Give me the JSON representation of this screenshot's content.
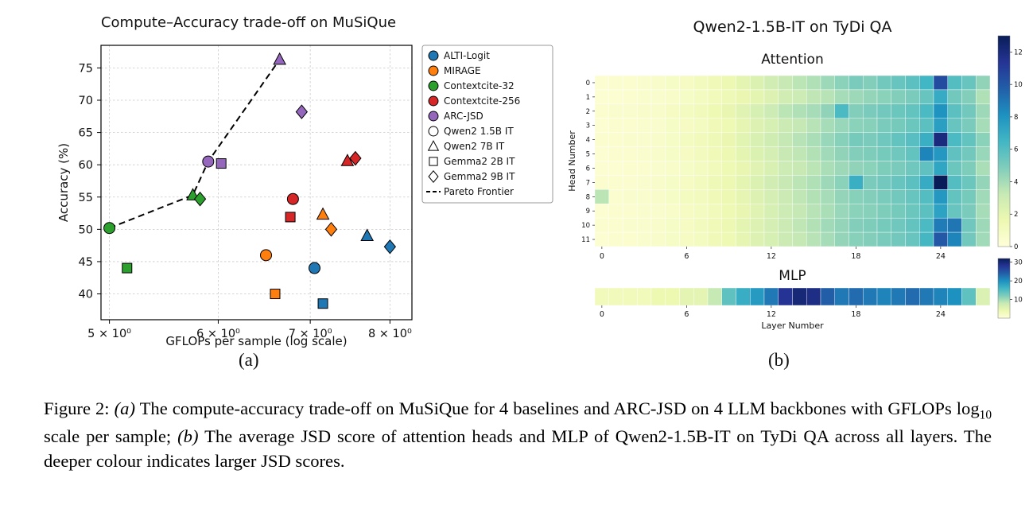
{
  "page": {
    "background": "#ffffff"
  },
  "panel_a": {
    "sublabel": "(a)"
  },
  "panel_b": {
    "sublabel": "(b)"
  },
  "caption": {
    "segments": [
      {
        "t": "Figure 2: ",
        "s": "normal"
      },
      {
        "t": "(a)",
        "s": "italic"
      },
      {
        "t": " The compute-accuracy trade-off on MuSiQue for 4 baselines and ARC-JSD on 4 LLM backbones with GFLOPs log",
        "s": "normal"
      },
      {
        "t": "10",
        "s": "sub"
      },
      {
        "t": " scale per sample; ",
        "s": "normal"
      },
      {
        "t": "(b)",
        "s": "italic"
      },
      {
        "t": " The average JSD score of attention heads and MLP of Qwen2-1.5B-IT on TyDi QA across all layers. The deeper colour indicates larger JSD scores.",
        "s": "normal"
      }
    ]
  },
  "chart_data": [
    {
      "type": "scatter",
      "title": "Compute–Accuracy trade-off on MuSiQue",
      "xlabel": "GFLOPs per sample (log scale)",
      "ylabel": "Accuracy (%)",
      "xscale": "log10",
      "xlim": [
        4.93,
        8.3
      ],
      "ylim": [
        36,
        78.5
      ],
      "xticks": [
        5,
        6,
        7,
        8
      ],
      "xtick_labels": [
        "5 × 10⁰",
        "6 × 10⁰",
        "7 × 10⁰",
        "8 × 10⁰"
      ],
      "yticks": [
        40,
        45,
        50,
        55,
        60,
        65,
        70,
        75
      ],
      "grid": true,
      "legend_position": "outside-right",
      "series": [
        {
          "name": "ALTI-Logit",
          "color": "#1f77b4",
          "points": [
            {
              "marker": "circle",
              "x": 7.05,
              "y": 44.0
            },
            {
              "marker": "triangle",
              "x": 7.7,
              "y": 49.0
            },
            {
              "marker": "square",
              "x": 7.15,
              "y": 38.5
            },
            {
              "marker": "diamond",
              "x": 8.0,
              "y": 47.3
            }
          ]
        },
        {
          "name": "MIRAGE",
          "color": "#ff7f0e",
          "points": [
            {
              "marker": "circle",
              "x": 6.5,
              "y": 46.0
            },
            {
              "marker": "triangle",
              "x": 7.15,
              "y": 52.3
            },
            {
              "marker": "square",
              "x": 6.6,
              "y": 40.0
            },
            {
              "marker": "diamond",
              "x": 7.25,
              "y": 50.0
            }
          ]
        },
        {
          "name": "Contextcite-32",
          "color": "#2ca02c",
          "points": [
            {
              "marker": "circle",
              "x": 5.0,
              "y": 50.2
            },
            {
              "marker": "triangle",
              "x": 5.75,
              "y": 55.3
            },
            {
              "marker": "square",
              "x": 5.15,
              "y": 44.0
            },
            {
              "marker": "diamond",
              "x": 5.82,
              "y": 54.7
            }
          ]
        },
        {
          "name": "Contextcite-256",
          "color": "#d62728",
          "points": [
            {
              "marker": "circle",
              "x": 6.8,
              "y": 54.7
            },
            {
              "marker": "triangle",
              "x": 7.45,
              "y": 60.6
            },
            {
              "marker": "square",
              "x": 6.77,
              "y": 51.9
            },
            {
              "marker": "diamond",
              "x": 7.55,
              "y": 61.0
            }
          ]
        },
        {
          "name": "ARC-JSD",
          "color": "#9467bd",
          "points": [
            {
              "marker": "circle",
              "x": 5.9,
              "y": 60.5
            },
            {
              "marker": "triangle",
              "x": 6.65,
              "y": 76.3
            },
            {
              "marker": "square",
              "x": 6.03,
              "y": 60.2
            },
            {
              "marker": "diamond",
              "x": 6.9,
              "y": 68.2
            }
          ]
        }
      ],
      "marker_legend": [
        {
          "marker": "circle",
          "label": "Qwen2 1.5B IT"
        },
        {
          "marker": "triangle",
          "label": "Qwen2 7B IT"
        },
        {
          "marker": "square",
          "label": "Gemma2 2B IT"
        },
        {
          "marker": "diamond",
          "label": "Gemma2 9B IT"
        }
      ],
      "pareto": {
        "label": "Pareto Frontier",
        "points": [
          [
            5.0,
            50.2
          ],
          [
            5.75,
            55.3
          ],
          [
            5.9,
            60.5
          ],
          [
            6.65,
            76.3
          ]
        ]
      }
    },
    {
      "type": "heatmap",
      "suptitle": "Qwen2-1.5B-IT on TyDi QA",
      "title": "Attention",
      "ylabel": "Head Number",
      "rows": [
        "0",
        "1",
        "2",
        "3",
        "4",
        "5",
        "6",
        "7",
        "8",
        "9",
        "10",
        "11"
      ],
      "xticks": [
        0,
        6,
        12,
        18,
        24
      ],
      "colorbar_ticks": [
        0,
        2,
        4,
        6,
        8,
        10,
        12
      ],
      "vmin": 0,
      "vmax": 13,
      "colormap": "YlGnBu",
      "values": [
        [
          0.3,
          0.4,
          0.4,
          0.5,
          0.6,
          0.8,
          0.9,
          1.1,
          1.3,
          1.6,
          2.0,
          2.4,
          2.8,
          3.2,
          3.5,
          3.8,
          4.2,
          4.6,
          5.0,
          4.8,
          5.2,
          5.5,
          5.8,
          6.5,
          10.5,
          6.0,
          5.5,
          4.5
        ],
        [
          0.3,
          0.3,
          0.4,
          0.5,
          0.5,
          0.7,
          0.8,
          1.0,
          1.2,
          1.4,
          1.7,
          2.0,
          2.3,
          2.8,
          3.0,
          3.4,
          3.6,
          4.0,
          4.2,
          4.4,
          4.6,
          4.8,
          5.0,
          5.5,
          7.0,
          5.2,
          4.8,
          3.8
        ],
        [
          0.4,
          0.5,
          0.5,
          0.6,
          0.6,
          0.9,
          1.0,
          1.2,
          1.5,
          1.8,
          2.2,
          2.6,
          3.0,
          3.5,
          3.8,
          4.0,
          4.5,
          6.2,
          4.8,
          5.0,
          5.2,
          5.4,
          5.6,
          6.2,
          8.0,
          5.8,
          5.2,
          4.2
        ],
        [
          0.3,
          0.4,
          0.4,
          0.5,
          0.5,
          0.8,
          0.9,
          1.0,
          1.3,
          1.5,
          1.9,
          2.3,
          2.6,
          3.1,
          3.3,
          3.6,
          4.0,
          4.3,
          4.6,
          4.7,
          5.0,
          5.1,
          5.4,
          5.8,
          7.5,
          5.5,
          5.0,
          4.0
        ],
        [
          0.4,
          0.4,
          0.5,
          0.5,
          0.6,
          0.8,
          1.0,
          1.2,
          1.4,
          1.7,
          2.1,
          2.5,
          2.9,
          3.3,
          3.6,
          3.9,
          4.3,
          4.7,
          5.1,
          5.0,
          5.3,
          5.6,
          5.9,
          6.8,
          12.0,
          6.2,
          5.6,
          4.6
        ],
        [
          0.3,
          0.4,
          0.4,
          0.5,
          0.6,
          0.8,
          0.9,
          1.1,
          1.3,
          1.6,
          2.0,
          2.4,
          2.7,
          3.2,
          3.4,
          3.7,
          4.1,
          4.5,
          4.8,
          4.9,
          5.1,
          5.3,
          5.6,
          8.5,
          7.8,
          5.7,
          5.2,
          4.3
        ],
        [
          0.3,
          0.3,
          0.4,
          0.4,
          0.5,
          0.7,
          0.8,
          1.0,
          1.2,
          1.5,
          1.8,
          2.2,
          2.5,
          3.0,
          3.2,
          3.5,
          3.9,
          4.2,
          4.5,
          4.6,
          4.9,
          5.0,
          5.3,
          5.7,
          7.2,
          5.4,
          4.9,
          3.9
        ],
        [
          0.4,
          0.4,
          0.4,
          0.5,
          0.6,
          0.8,
          0.9,
          1.1,
          1.4,
          1.6,
          2.0,
          2.4,
          2.8,
          3.2,
          3.5,
          3.8,
          4.2,
          4.6,
          6.8,
          5.0,
          5.2,
          5.5,
          5.8,
          7.0,
          13.0,
          6.0,
          5.4,
          4.4
        ],
        [
          3.5,
          0.4,
          0.5,
          0.5,
          0.6,
          0.8,
          1.0,
          1.1,
          1.3,
          1.6,
          1.9,
          2.3,
          2.7,
          3.1,
          3.4,
          3.7,
          4.0,
          4.4,
          4.7,
          4.8,
          5.0,
          5.2,
          5.5,
          6.0,
          7.8,
          5.6,
          5.1,
          4.1
        ],
        [
          0.3,
          0.4,
          0.4,
          0.5,
          0.5,
          0.7,
          0.9,
          1.0,
          1.2,
          1.5,
          1.8,
          2.2,
          2.6,
          3.0,
          3.3,
          3.6,
          3.9,
          4.3,
          4.6,
          4.7,
          4.9,
          5.1,
          5.4,
          5.8,
          7.4,
          5.5,
          5.0,
          4.0
        ],
        [
          0.4,
          0.4,
          0.5,
          0.5,
          0.6,
          0.8,
          0.9,
          1.1,
          1.3,
          1.6,
          2.0,
          2.3,
          2.7,
          3.1,
          3.4,
          3.7,
          4.1,
          4.4,
          4.8,
          4.9,
          5.1,
          5.3,
          5.6,
          6.2,
          8.8,
          9.0,
          5.3,
          4.2
        ],
        [
          0.3,
          0.4,
          0.4,
          0.5,
          0.6,
          0.8,
          0.9,
          1.0,
          1.3,
          1.5,
          1.9,
          2.3,
          2.6,
          3.1,
          3.3,
          3.6,
          4.0,
          4.4,
          4.7,
          4.8,
          5.0,
          5.2,
          5.5,
          6.4,
          10.0,
          8.5,
          5.2,
          4.1
        ]
      ]
    },
    {
      "type": "heatmap",
      "title": "MLP",
      "xlabel": "Layer Number",
      "xticks": [
        0,
        6,
        12,
        18,
        24
      ],
      "colorbar_ticks": [
        10,
        20,
        30
      ],
      "vmin": 0,
      "vmax": 32,
      "colormap": "YlGnBu",
      "values": [
        [
          3,
          3,
          3,
          3,
          4,
          4,
          5,
          5,
          8,
          14,
          17,
          19,
          22,
          28,
          30,
          29,
          24,
          22,
          23,
          22,
          21,
          22,
          23,
          22,
          21,
          20,
          14,
          6
        ]
      ]
    }
  ]
}
